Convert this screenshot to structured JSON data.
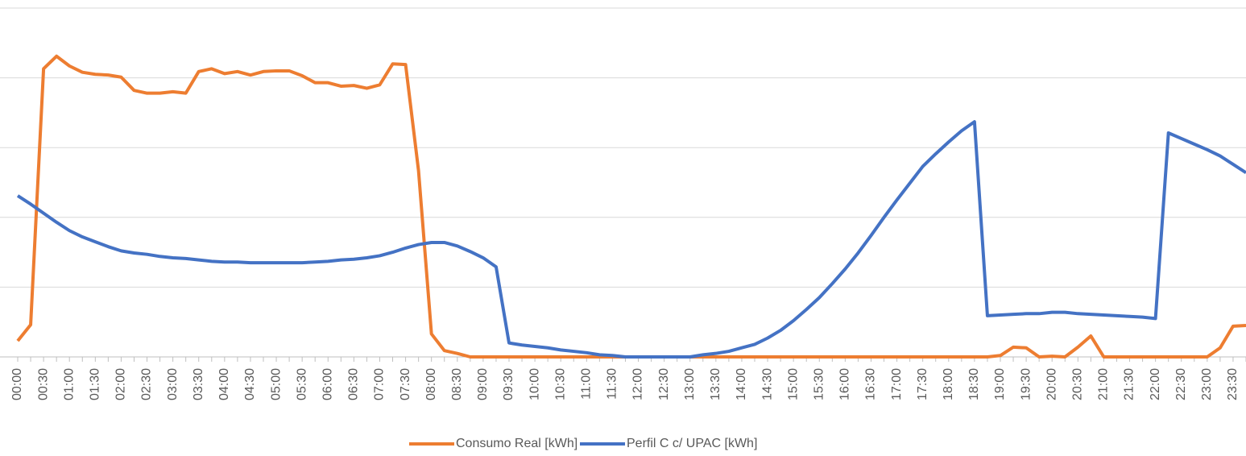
{
  "chart_data": {
    "type": "line",
    "categories": [
      "00:00",
      null,
      "00:30",
      null,
      "01:00",
      null,
      "01:30",
      null,
      "02:00",
      null,
      "02:30",
      null,
      "03:00",
      null,
      "03:30",
      null,
      "04:00",
      null,
      "04:30",
      null,
      "05:00",
      null,
      "05:30",
      null,
      "06:00",
      null,
      "06:30",
      null,
      "07:00",
      null,
      "07:30",
      null,
      "08:00",
      null,
      "08:30",
      null,
      "09:00",
      null,
      "09:30",
      null,
      "10:00",
      null,
      "10:30",
      null,
      "11:00",
      null,
      "11:30",
      null,
      "12:00",
      null,
      "12:30",
      null,
      "13:00",
      null,
      "13:30",
      null,
      "14:00",
      null,
      "14:30",
      null,
      "15:00",
      null,
      "15:30",
      null,
      "16:00",
      null,
      "16:30",
      null,
      "17:00",
      null,
      "17:30",
      null,
      "18:00",
      null,
      "18:30",
      null,
      "19:00",
      null,
      "19:30",
      null,
      "20:00",
      null,
      "20:30",
      null,
      "21:00",
      null,
      "21:30",
      null,
      "22:00",
      null,
      "22:30",
      null,
      "23:00",
      null,
      "23:30",
      null
    ],
    "series": [
      {
        "name": "Consumo Real [kWh]",
        "color": "#ed7d31",
        "values": [
          0.23,
          0.46,
          4.13,
          4.31,
          4.17,
          4.08,
          4.05,
          4.04,
          4.01,
          3.82,
          3.78,
          3.78,
          3.8,
          3.78,
          4.09,
          4.13,
          4.06,
          4.09,
          4.04,
          4.09,
          4.1,
          4.1,
          4.03,
          3.93,
          3.93,
          3.88,
          3.89,
          3.85,
          3.9,
          4.2,
          4.19,
          2.67,
          0.33,
          0.09,
          0.05,
          0,
          0,
          0,
          0,
          0,
          0,
          0,
          0,
          0,
          0,
          0,
          0,
          0,
          0,
          0,
          0,
          0,
          0,
          0,
          0,
          0,
          0,
          0,
          0,
          0,
          0,
          0,
          0,
          0,
          0,
          0,
          0,
          0,
          0,
          0,
          0,
          0,
          0,
          0,
          0,
          0,
          0.02,
          0.14,
          0.13,
          0,
          0.01,
          0,
          0.14,
          0.3,
          0,
          0,
          0,
          0,
          0,
          0,
          0,
          0,
          0,
          0.13,
          0.44,
          0.45
        ]
      },
      {
        "name": "Perfil C c/ UPAC [kWh]",
        "color": "#4472c4",
        "values": [
          2.31,
          2.19,
          2.06,
          1.93,
          1.81,
          1.72,
          1.65,
          1.58,
          1.52,
          1.49,
          1.47,
          1.44,
          1.42,
          1.41,
          1.39,
          1.37,
          1.36,
          1.36,
          1.35,
          1.35,
          1.35,
          1.35,
          1.35,
          1.36,
          1.37,
          1.39,
          1.4,
          1.42,
          1.45,
          1.5,
          1.56,
          1.61,
          1.64,
          1.64,
          1.59,
          1.51,
          1.42,
          1.29,
          0.2,
          0.17,
          0.15,
          0.13,
          0.1,
          0.08,
          0.06,
          0.03,
          0.02,
          0,
          0,
          0,
          0,
          0,
          0,
          0.03,
          0.05,
          0.08,
          0.13,
          0.18,
          0.27,
          0.38,
          0.52,
          0.68,
          0.85,
          1.05,
          1.26,
          1.49,
          1.74,
          2.0,
          2.25,
          2.49,
          2.73,
          2.91,
          3.08,
          3.24,
          3.37,
          0.59,
          0.6,
          0.61,
          0.62,
          0.62,
          0.64,
          0.64,
          0.62,
          0.61,
          0.6,
          0.59,
          0.58,
          0.57,
          0.55,
          3.21,
          3.13,
          3.05,
          2.97,
          2.88,
          2.76,
          2.64
        ]
      }
    ],
    "ylim": [
      0,
      5
    ],
    "yticks": [
      0,
      1,
      2,
      3,
      4,
      5
    ],
    "grid": true,
    "legend": "bottom"
  }
}
